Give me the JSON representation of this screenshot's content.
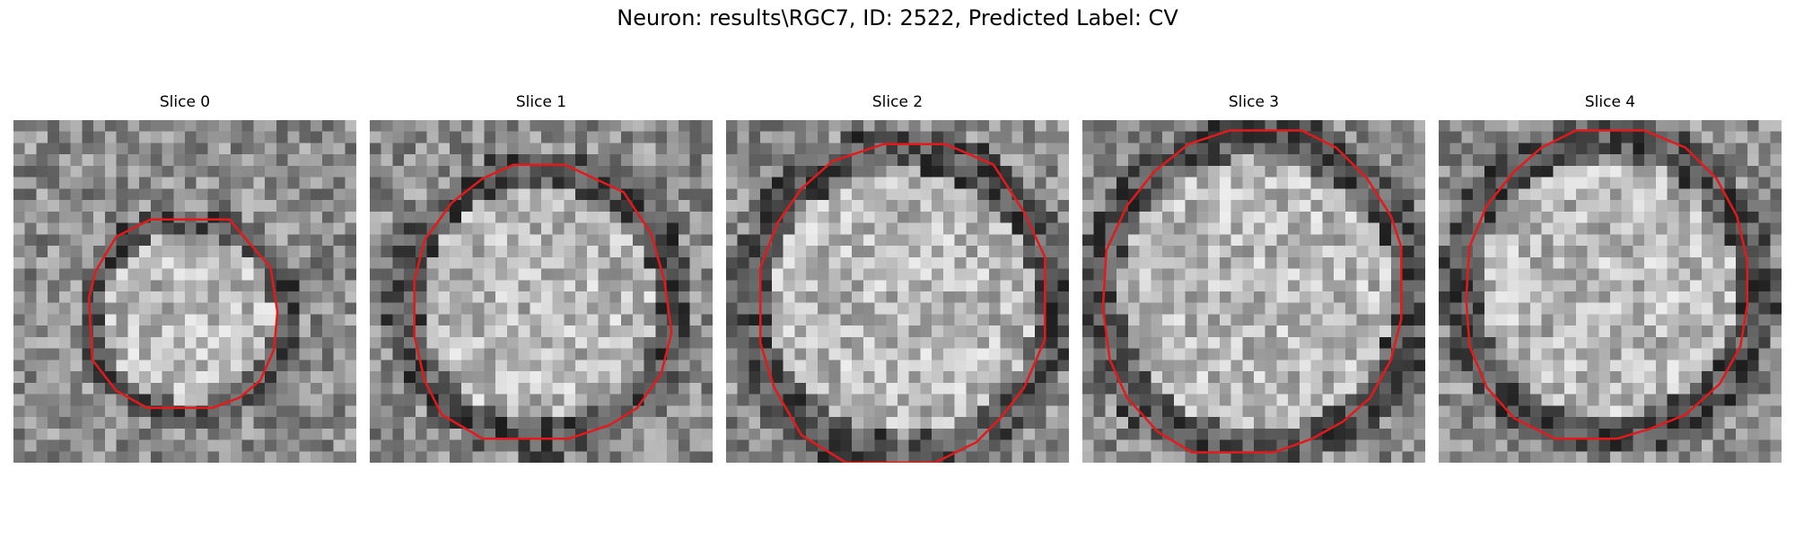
{
  "figure": {
    "title": "Neuron: results\\RGC7, ID: 2522, Predicted Label: CV"
  },
  "panels": [
    {
      "title": "Slice 0",
      "seed": 11,
      "contour": [
        [
          0.4,
          0.29
        ],
        [
          0.63,
          0.29
        ],
        [
          0.68,
          0.35
        ],
        [
          0.75,
          0.43
        ],
        [
          0.77,
          0.56
        ],
        [
          0.76,
          0.67
        ],
        [
          0.72,
          0.76
        ],
        [
          0.66,
          0.81
        ],
        [
          0.58,
          0.84
        ],
        [
          0.39,
          0.84
        ],
        [
          0.3,
          0.79
        ],
        [
          0.23,
          0.7
        ],
        [
          0.22,
          0.52
        ],
        [
          0.24,
          0.44
        ],
        [
          0.3,
          0.34
        ]
      ]
    },
    {
      "title": "Slice 1",
      "seed": 23,
      "contour": [
        [
          0.42,
          0.13
        ],
        [
          0.57,
          0.13
        ],
        [
          0.74,
          0.21
        ],
        [
          0.82,
          0.33
        ],
        [
          0.86,
          0.47
        ],
        [
          0.88,
          0.62
        ],
        [
          0.85,
          0.74
        ],
        [
          0.78,
          0.84
        ],
        [
          0.7,
          0.89
        ],
        [
          0.58,
          0.93
        ],
        [
          0.33,
          0.93
        ],
        [
          0.21,
          0.86
        ],
        [
          0.16,
          0.76
        ],
        [
          0.13,
          0.63
        ],
        [
          0.13,
          0.47
        ],
        [
          0.16,
          0.35
        ],
        [
          0.24,
          0.24
        ],
        [
          0.33,
          0.17
        ]
      ]
    },
    {
      "title": "Slice 2",
      "seed": 37,
      "contour": [
        [
          0.46,
          0.07
        ],
        [
          0.64,
          0.07
        ],
        [
          0.78,
          0.13
        ],
        [
          0.87,
          0.27
        ],
        [
          0.93,
          0.4
        ],
        [
          0.93,
          0.64
        ],
        [
          0.87,
          0.78
        ],
        [
          0.8,
          0.87
        ],
        [
          0.73,
          0.94
        ],
        [
          0.61,
          1.0
        ],
        [
          0.35,
          1.0
        ],
        [
          0.22,
          0.92
        ],
        [
          0.14,
          0.78
        ],
        [
          0.1,
          0.65
        ],
        [
          0.1,
          0.43
        ],
        [
          0.15,
          0.3
        ],
        [
          0.22,
          0.2
        ],
        [
          0.31,
          0.12
        ]
      ]
    },
    {
      "title": "Slice 3",
      "seed": 53,
      "contour": [
        [
          0.43,
          0.03
        ],
        [
          0.64,
          0.03
        ],
        [
          0.74,
          0.08
        ],
        [
          0.83,
          0.17
        ],
        [
          0.9,
          0.28
        ],
        [
          0.93,
          0.37
        ],
        [
          0.93,
          0.58
        ],
        [
          0.9,
          0.7
        ],
        [
          0.84,
          0.81
        ],
        [
          0.76,
          0.88
        ],
        [
          0.67,
          0.93
        ],
        [
          0.56,
          0.97
        ],
        [
          0.32,
          0.97
        ],
        [
          0.22,
          0.91
        ],
        [
          0.13,
          0.81
        ],
        [
          0.08,
          0.7
        ],
        [
          0.06,
          0.55
        ],
        [
          0.07,
          0.38
        ],
        [
          0.13,
          0.25
        ],
        [
          0.21,
          0.15
        ],
        [
          0.31,
          0.07
        ]
      ]
    },
    {
      "title": "Slice 4",
      "seed": 71,
      "contour": [
        [
          0.4,
          0.03
        ],
        [
          0.6,
          0.03
        ],
        [
          0.72,
          0.08
        ],
        [
          0.81,
          0.17
        ],
        [
          0.87,
          0.28
        ],
        [
          0.9,
          0.41
        ],
        [
          0.9,
          0.54
        ],
        [
          0.88,
          0.66
        ],
        [
          0.82,
          0.77
        ],
        [
          0.72,
          0.86
        ],
        [
          0.62,
          0.9
        ],
        [
          0.52,
          0.93
        ],
        [
          0.34,
          0.93
        ],
        [
          0.22,
          0.87
        ],
        [
          0.14,
          0.78
        ],
        [
          0.09,
          0.66
        ],
        [
          0.08,
          0.52
        ],
        [
          0.09,
          0.37
        ],
        [
          0.14,
          0.25
        ],
        [
          0.22,
          0.15
        ],
        [
          0.3,
          0.08
        ]
      ]
    }
  ],
  "colors": {
    "contour": "#e31a1c"
  }
}
